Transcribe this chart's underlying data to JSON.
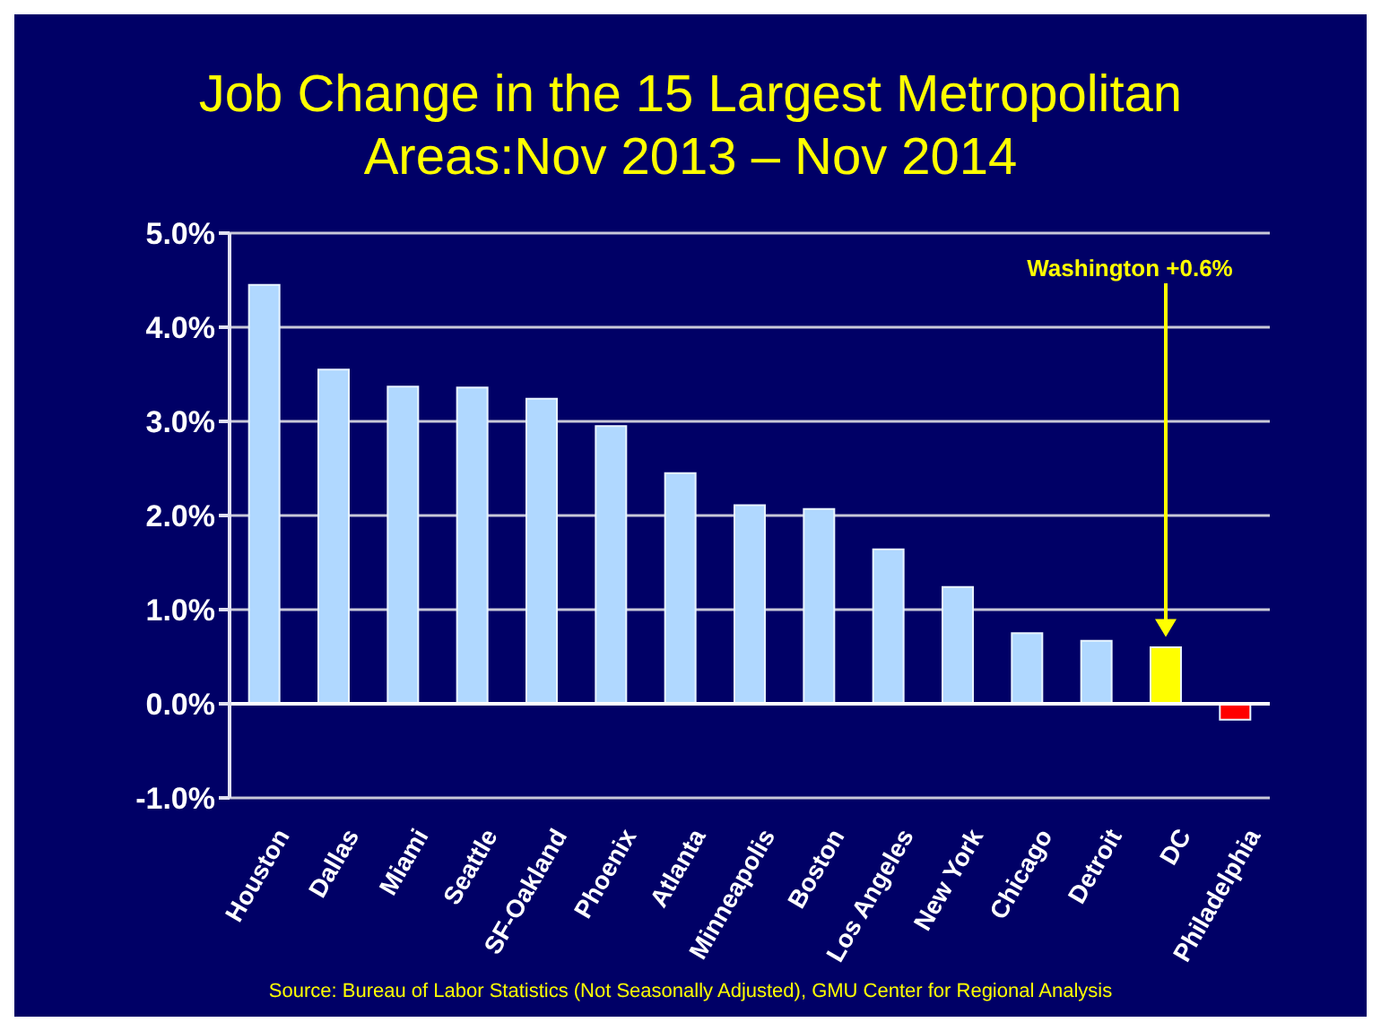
{
  "chart_data": {
    "type": "bar",
    "title": "Job Change in the 15 Largest Metropolitan Areas:Nov 2013 – Nov 2014",
    "categories": [
      "Houston",
      "Dallas",
      "Miami",
      "Seattle",
      "SF-Oakland",
      "Phoenix",
      "Atlanta",
      "Minneapolis",
      "Boston",
      "Los Angeles",
      "New York",
      "Chicago",
      "Detroit",
      "DC",
      "Philadelphia"
    ],
    "values": [
      4.45,
      3.55,
      3.37,
      3.36,
      3.24,
      2.95,
      2.45,
      2.11,
      2.07,
      1.64,
      1.24,
      0.75,
      0.67,
      0.6,
      -0.17
    ],
    "colors": [
      "#b0d8ff",
      "#b0d8ff",
      "#b0d8ff",
      "#b0d8ff",
      "#b0d8ff",
      "#b0d8ff",
      "#b0d8ff",
      "#b0d8ff",
      "#b0d8ff",
      "#b0d8ff",
      "#b0d8ff",
      "#b0d8ff",
      "#b0d8ff",
      "#ffff00",
      "#ff0000"
    ],
    "ylim": [
      -1,
      5
    ],
    "yticks": [
      {
        "value": -1,
        "label": "-1.0%"
      },
      {
        "value": 0,
        "label": "0.0%"
      },
      {
        "value": 1,
        "label": "1.0%"
      },
      {
        "value": 2,
        "label": "2.0%"
      },
      {
        "value": 3,
        "label": "3.0%"
      },
      {
        "value": 4,
        "label": "4.0%"
      },
      {
        "value": 5,
        "label": "5.0%"
      }
    ],
    "grid": "y",
    "annotations": [
      "Washington +0.6%",
      "Source: Bureau of Labor Statistics (Not Seasonally Adjusted), GMU Center for Regional Analysis"
    ]
  }
}
